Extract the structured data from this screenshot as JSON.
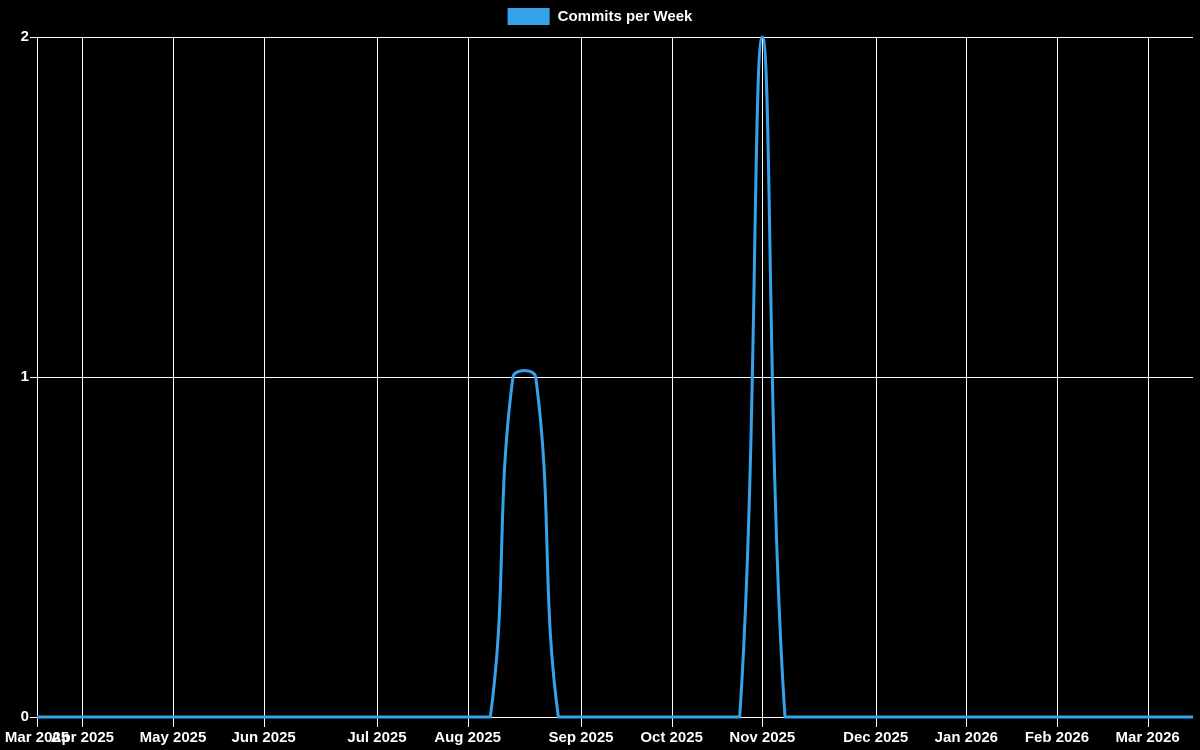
{
  "app": {
    "background_color": "#000000",
    "text_color": "#ffffff",
    "grid_color": "#ffffff"
  },
  "legend": {
    "label": "Commits per Week",
    "swatch_color": "#36a2eb"
  },
  "chart_data": {
    "type": "line",
    "title": "Commits per Week",
    "xlabel": "",
    "ylabel": "",
    "legend_position": "top-center",
    "grid": true,
    "line_color": "#36a2eb",
    "line_width": 3,
    "line_smoothing_tension": 0.4,
    "ylim": [
      0,
      2
    ],
    "y_ticks": [
      "0",
      "1",
      "2"
    ],
    "y_tick_values": [
      0,
      1,
      2
    ],
    "x_tick_labels": [
      "Mar 2025",
      "Apr 2025",
      "May 2025",
      "Jun 2025",
      "Jul 2025",
      "Aug 2025",
      "Sep 2025",
      "Oct 2025",
      "Nov 2025",
      "Dec 2025",
      "Jan 2026",
      "Feb 2026",
      "Mar 2026"
    ],
    "x_tick_week_indices": [
      0,
      2,
      6,
      10,
      15,
      19,
      24,
      28,
      32,
      37,
      41,
      45,
      49
    ],
    "x_unit": "week",
    "num_weeks": 52,
    "series": [
      {
        "name": "Commits per Week",
        "color": "#36a2eb",
        "values": [
          0,
          0,
          0,
          0,
          0,
          0,
          0,
          0,
          0,
          0,
          0,
          0,
          0,
          0,
          0,
          0,
          0,
          0,
          0,
          0,
          0,
          1,
          1,
          0,
          0,
          0,
          0,
          0,
          0,
          0,
          0,
          0,
          2,
          0,
          0,
          0,
          0,
          0,
          0,
          0,
          0,
          0,
          0,
          0,
          0,
          0,
          0,
          0,
          0,
          0,
          0,
          0
        ]
      }
    ],
    "notable_points": [
      {
        "description": "plateau of 1 commit/week for two weeks mid-Aug 2025",
        "value": 1
      },
      {
        "description": "spike of 2 commits in week at Nov 2025 tick",
        "value": 2
      }
    ]
  }
}
